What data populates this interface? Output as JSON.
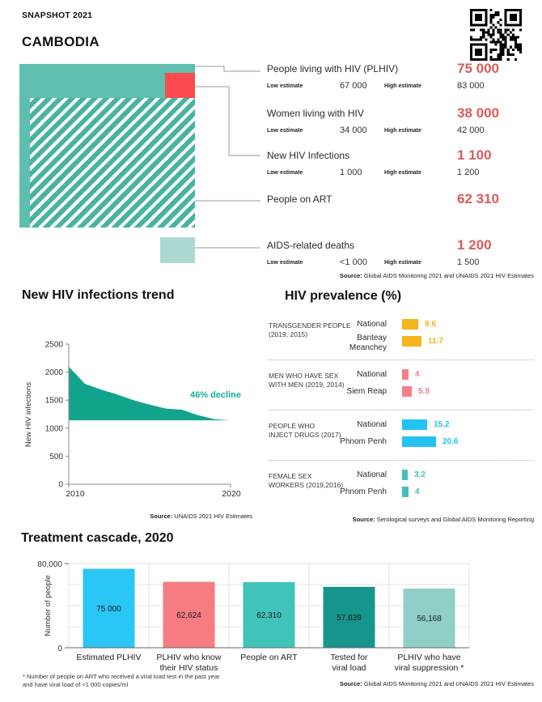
{
  "source_label": "Source:",
  "header": {
    "snapshot_label": "SNAPSHOT 2021",
    "country": "CAMBODIA"
  },
  "key_stats": {
    "low_label": "Low estimate",
    "high_label": "High estimate",
    "items": [
      {
        "label": "People living with HIV (PLHIV)",
        "value": "75 000",
        "low": "67 000",
        "high": "83 000"
      },
      {
        "label": "Women living with HIV",
        "value": "38 000",
        "low": "34 000",
        "high": "42 000"
      },
      {
        "label": "New HIV Infections",
        "value": "1 100",
        "low": "1 000",
        "high": "1 200"
      },
      {
        "label": "People on ART",
        "value": "62 310"
      },
      {
        "label": "AIDS-related deaths",
        "value": "1 200",
        "low": "<1 000",
        "high": "1 500"
      }
    ],
    "source": "Global AIDS Monitoring 2021 and UNAIDS 2021 HIV Estimates"
  },
  "infographic_colors": {
    "plhiv_square": "#5FBFAF",
    "art_hatch": "#49B3A2",
    "new_infections_square": "#FB4B50",
    "aids_deaths_square": "#ABD9D1",
    "accent_number_red": "#D95C59"
  },
  "chart_data": [
    {
      "id": "trend",
      "type": "area",
      "title": "New HIV infections trend",
      "ylabel": "New HIV infections",
      "x": [
        2010,
        2011,
        2012,
        2013,
        2014,
        2015,
        2016,
        2017,
        2018,
        2019,
        2020
      ],
      "values": [
        2100,
        1790,
        1690,
        1600,
        1500,
        1420,
        1350,
        1330,
        1230,
        1160,
        1140
      ],
      "baseline": 1140,
      "ylim": [
        0,
        2500
      ],
      "yticks": [
        0,
        500,
        1000,
        1500,
        2000,
        2500
      ],
      "xticks": [
        "2010",
        "2020"
      ],
      "annotation": "46% decline",
      "color": "#12A48D",
      "annotation_color": "#17AF9D",
      "source": "UNAIDS 2021 HIV Estimates"
    },
    {
      "id": "prevalence",
      "type": "bar",
      "title": "HIV prevalence (%)",
      "groups": [
        {
          "label": "TRANSGENDER PEOPLE\n(2019, 2015)",
          "color": "#F6B41E",
          "rows": [
            {
              "name": "National",
              "value": 9.6
            },
            {
              "name": "Banteay\nMeanchey",
              "value": 11.7
            }
          ]
        },
        {
          "label": "MEN WHO HAVE SEX\nWITH MEN (2019, 2014)",
          "color": "#F4808A",
          "rows": [
            {
              "name": "National",
              "value": 4
            },
            {
              "name": "Siem Reap",
              "value": 5.9
            }
          ]
        },
        {
          "label": "PEOPLE WHO\nINJECT DRUGS (2017)",
          "color": "#24C2F2",
          "rows": [
            {
              "name": "National",
              "value": 15.2
            },
            {
              "name": "Phnom Penh",
              "value": 20.6
            }
          ]
        },
        {
          "label": "FEMALE SEX\nWORKERS (2019,2016)",
          "color": "#44BFB3",
          "rows": [
            {
              "name": "National",
              "value": 3.2
            },
            {
              "name": "Phnom Penh",
              "value": 4
            }
          ]
        }
      ],
      "source": "Serological surveys and Global AIDS Monitoring Reporting"
    },
    {
      "id": "cascade",
      "type": "bar",
      "title": "Treatment cascade, 2020",
      "ylabel": "Number of people",
      "ylim": [
        0,
        80000
      ],
      "ytick_labels": [
        "0",
        "80,000"
      ],
      "categories": [
        "Estimated PLHIV",
        "PLHIV who know\ntheir HIV status",
        "People on ART",
        "Tested for\nviral load",
        "PLHIV who have\nviral suppression *"
      ],
      "values": [
        75000,
        62624,
        62310,
        57839,
        56168
      ],
      "value_labels": [
        "75 000",
        "62,624",
        "62,310",
        "57,839",
        "56,168"
      ],
      "bar_colors": [
        "#2AC6F5",
        "#F57C80",
        "#40C4BA",
        "#17948C",
        "#90CFC8"
      ],
      "footnote": "* Number of people on ART who received a viral load test in the past year\nand have viral load of <1 000 copies/ml",
      "source": "Global AIDS Monitoring 2021 and UNAIDS 2021 HIV Estimates"
    }
  ]
}
